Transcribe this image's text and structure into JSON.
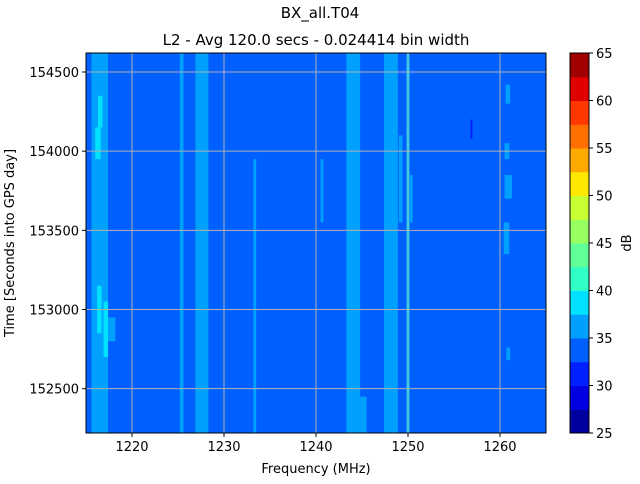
{
  "chart_data": {
    "type": "heatmap",
    "subtype": "filled-contour",
    "title": "BX_all.T04",
    "subtitle": "L2 - Avg 120.0 secs - 0.024414 bin width",
    "xlabel": "Frequency (MHz)",
    "ylabel": "Time [Seconds into GPS day]",
    "xlim": [
      1215,
      1265
    ],
    "ylim": [
      152220,
      154620
    ],
    "xticks": [
      1220,
      1230,
      1240,
      1250,
      1260
    ],
    "yticks": [
      152500,
      153000,
      153500,
      154000,
      154500
    ],
    "grid": true,
    "grid_color": "#b0b0b0",
    "colorbar": {
      "label": "dB",
      "range": [
        25,
        65
      ],
      "ticks": [
        25,
        30,
        35,
        40,
        45,
        50,
        55,
        60,
        65
      ],
      "levels": [
        25,
        27.5,
        30,
        32.5,
        35,
        37.5,
        40,
        42.5,
        45,
        47.5,
        50,
        52.5,
        55,
        57.5,
        60,
        62.5,
        65
      ],
      "colors": [
        "#00009f",
        "#0000e0",
        "#0020ff",
        "#0060ff",
        "#00a0ff",
        "#00e0ff",
        "#30ffc8",
        "#60ff98",
        "#98ff60",
        "#c8ff30",
        "#ffe800",
        "#ffaa00",
        "#ff7000",
        "#ff3800",
        "#e00000",
        "#a00000"
      ]
    },
    "background_level_db": 33.75,
    "regions": [
      {
        "f": [
          1215.6,
          1217.4
        ],
        "t": [
          152220,
          154620
        ],
        "db": 36
      },
      {
        "f": [
          1216.0,
          1216.6
        ],
        "t": [
          153950,
          154150
        ],
        "db": 38.5
      },
      {
        "f": [
          1216.9,
          1217.4
        ],
        "t": [
          152700,
          153050
        ],
        "db": 38.5
      },
      {
        "f": [
          1216.2,
          1216.7
        ],
        "t": [
          152850,
          153150
        ],
        "db": 38.5
      },
      {
        "f": [
          1216.3,
          1216.8
        ],
        "t": [
          154150,
          154350
        ],
        "db": 38.5
      },
      {
        "f": [
          1217.4,
          1218.2
        ],
        "t": [
          152800,
          152950
        ],
        "db": 36
      },
      {
        "f": [
          1225.2,
          1225.6
        ],
        "t": [
          152220,
          154620
        ],
        "db": 36
      },
      {
        "f": [
          1226.9,
          1228.3
        ],
        "t": [
          152220,
          154620
        ],
        "db": 36
      },
      {
        "f": [
          1233.2,
          1233.5
        ],
        "t": [
          152220,
          153950
        ],
        "db": 36
      },
      {
        "f": [
          1240.5,
          1240.8
        ],
        "t": [
          153550,
          153950
        ],
        "db": 36
      },
      {
        "f": [
          1243.3,
          1244.8
        ],
        "t": [
          152220,
          154620
        ],
        "db": 36
      },
      {
        "f": [
          1244.8,
          1245.5
        ],
        "t": [
          152220,
          152450
        ],
        "db": 36
      },
      {
        "f": [
          1247.4,
          1248.9
        ],
        "t": [
          152220,
          154620
        ],
        "db": 36
      },
      {
        "f": [
          1249.0,
          1249.4
        ],
        "t": [
          153550,
          154100
        ],
        "db": 36
      },
      {
        "f": [
          1249.8,
          1250.2
        ],
        "t": [
          152220,
          154620
        ],
        "db": 36
      },
      {
        "f": [
          1249.9,
          1250.1
        ],
        "t": [
          152220,
          154620
        ],
        "db": 38.5
      },
      {
        "f": [
          1250.2,
          1250.5
        ],
        "t": [
          153550,
          153850
        ],
        "db": 36
      },
      {
        "f": [
          1256.8,
          1257.0
        ],
        "t": [
          154080,
          154200
        ],
        "db": 31
      },
      {
        "f": [
          1260.6,
          1261.1
        ],
        "t": [
          154300,
          154420
        ],
        "db": 36
      },
      {
        "f": [
          1260.5,
          1261.0
        ],
        "t": [
          153950,
          154050
        ],
        "db": 36
      },
      {
        "f": [
          1260.5,
          1261.3
        ],
        "t": [
          153700,
          153850
        ],
        "db": 36
      },
      {
        "f": [
          1260.4,
          1261.0
        ],
        "t": [
          153350,
          153550
        ],
        "db": 36
      },
      {
        "f": [
          1260.7,
          1261.1
        ],
        "t": [
          152680,
          152760
        ],
        "db": 36
      }
    ]
  }
}
